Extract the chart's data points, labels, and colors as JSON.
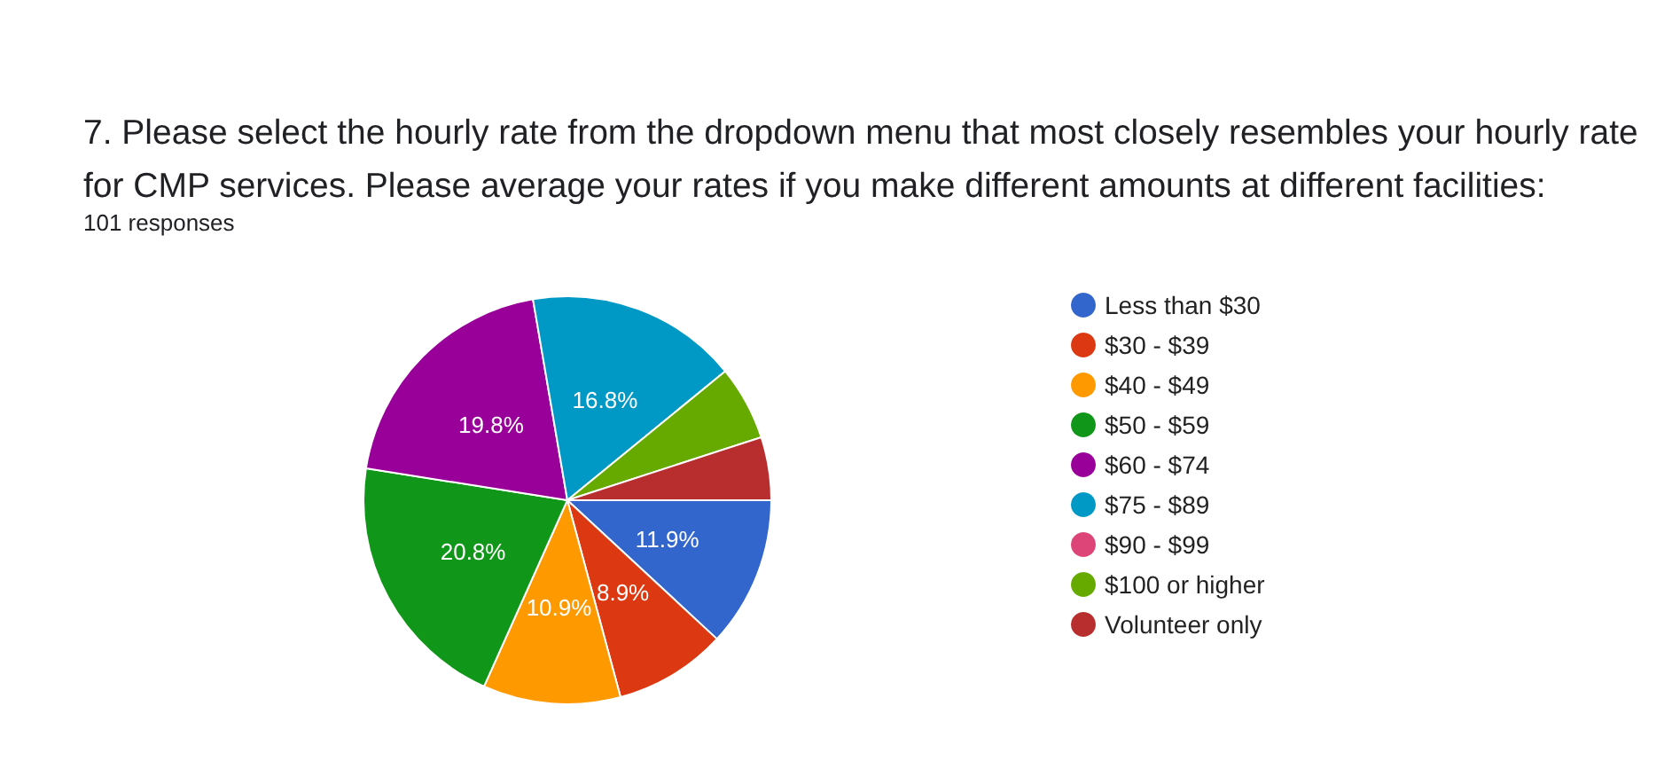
{
  "chart_data": {
    "type": "pie",
    "title": "7. Please select the hourly rate from the dropdown menu that most closely resembles your hourly rate for CMP services. Please average your rates if you make different amounts at different facilities:",
    "subtitle": "101 responses",
    "categories": [
      "Less than $30",
      "$30 - $39",
      "$40 - $49",
      "$50 - $59",
      "$60 - $74",
      "$75 - $89",
      "$90 - $99",
      "$100 or higher",
      "Volunteer only"
    ],
    "values": [
      11.9,
      8.9,
      10.9,
      20.8,
      19.8,
      16.8,
      0,
      5.9,
      5.0
    ],
    "value_labels": [
      "11.9%",
      "8.9%",
      "10.9%",
      "20.8%",
      "19.8%",
      "16.8%",
      null,
      null,
      null
    ],
    "colors": [
      "#3366cc",
      "#dc3912",
      "#ff9900",
      "#109618",
      "#990099",
      "#0099c6",
      "#dd4477",
      "#66aa00",
      "#b82e2e"
    ],
    "legend": "right"
  }
}
